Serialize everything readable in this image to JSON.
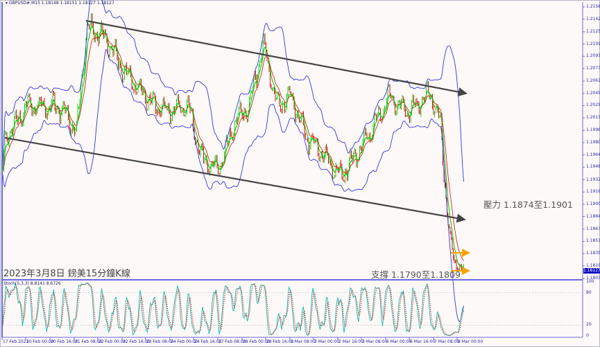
{
  "header": {
    "title": "GBPUSD#,M15  1.18148 1.18151 1.18127 1.18127",
    "dropdown_icon": "triangle-down-icon"
  },
  "annotations": {
    "caption": "2023年3月8日 鎊美15分鐘K線",
    "resistance": "壓力 1.1874至1.1901",
    "support": "支撐 1.1790至1.1809"
  },
  "colors": {
    "bull_candle": "#22cc22",
    "bear_candle": "#dd1111",
    "fast_ma": "#00cc00",
    "slow_ma": "#dd2222",
    "envelope": "#3333ee",
    "trendline": "#444444",
    "level_arrow": "#f5a300",
    "stoch_main": "#20c0b0",
    "stoch_signal": "#dd2222",
    "axis": "#6a6ae0",
    "current_price_bg": "#1010c0"
  },
  "chart_data": [
    {
      "type": "candlestick",
      "symbol": "GBPUSD#",
      "timeframe": "M15",
      "last_ohlc": {
        "open": 1.18148,
        "high": 1.18151,
        "low": 1.18127,
        "close": 1.18127
      },
      "current_price": "1.18127",
      "ylim": [
        1.1803,
        1.2158
      ],
      "price_ticks": [
        "1.21580",
        "1.21420",
        "1.21255",
        "1.21095",
        "1.20935",
        "1.20775",
        "1.20610",
        "1.20450",
        "1.20290",
        "1.20130",
        "1.19965",
        "1.19805",
        "1.19645",
        "1.19485",
        "1.19320",
        "1.19160",
        "1.19000",
        "1.18840",
        "1.18675",
        "1.18515",
        "1.18355",
        "1.18195",
        "1.18030"
      ],
      "time_ticks": [
        "17 Feb 2023",
        "20 Feb 00:00",
        "20 Feb 16:00",
        "21 Feb 08:00",
        "22 Feb 00:00",
        "22 Feb 16:00",
        "23 Feb 08:00",
        "24 Feb 00:00",
        "24 Feb 16:00",
        "27 Feb 08:00",
        "28 Feb 00:00",
        "28 Feb 16:00",
        "1 Mar 08:00",
        "2 Mar 00:00",
        "2 Mar 16:00",
        "3 Mar 08:00",
        "6 Mar 00:00",
        "6 Mar 16:00",
        "7 Mar 08:00",
        "8 Mar 00:00"
      ],
      "approx_close_path": [
        {
          "t": "17 Feb 09:00",
          "p": 1.194
        },
        {
          "t": "17 Feb 16:00",
          "p": 1.1985
        },
        {
          "t": "20 Feb 01:00",
          "p": 1.203
        },
        {
          "t": "21 Feb 00:00",
          "p": 1.2025
        },
        {
          "t": "21 Feb 09:30",
          "p": 1.1995
        },
        {
          "t": "21 Feb 16:30",
          "p": 1.213
        },
        {
          "t": "22 Feb 04:00",
          "p": 1.212
        },
        {
          "t": "22 Feb 18:00",
          "p": 1.207
        },
        {
          "t": "23 Feb 08:00",
          "p": 1.204
        },
        {
          "t": "23 Feb 22:00",
          "p": 1.202
        },
        {
          "t": "24 Feb 12:00",
          "p": 1.203
        },
        {
          "t": "24 Feb 21:00",
          "p": 1.196
        },
        {
          "t": "27 Feb 08:30",
          "p": 1.1945
        },
        {
          "t": "27 Feb 20:00",
          "p": 1.201
        },
        {
          "t": "28 Feb 05:00",
          "p": 1.203
        },
        {
          "t": "28 Feb 14:30",
          "p": 1.211
        },
        {
          "t": "28 Feb 23:30",
          "p": 1.203
        },
        {
          "t": "1 Mar 09:00",
          "p": 1.204
        },
        {
          "t": "1 Mar 18:30",
          "p": 1.199
        },
        {
          "t": "2 Mar 08:30",
          "p": 1.196
        },
        {
          "t": "2 Mar 18:00",
          "p": 1.1935
        },
        {
          "t": "3 Mar 03:00",
          "p": 1.196
        },
        {
          "t": "3 Mar 12:30",
          "p": 1.199
        },
        {
          "t": "6 Mar 02:00",
          "p": 1.204
        },
        {
          "t": "6 Mar 16:00",
          "p": 1.202
        },
        {
          "t": "7 Mar 06:00",
          "p": 1.2045
        },
        {
          "t": "7 Mar 13:00",
          "p": 1.2
        },
        {
          "t": "7 Mar 17:30",
          "p": 1.188
        },
        {
          "t": "7 Mar 22:00",
          "p": 1.1825
        },
        {
          "t": "8 Mar 05:00",
          "p": 1.18127
        }
      ],
      "trendlines": [
        {
          "from": {
            "t": "21 Feb 16:00",
            "p": 1.214
          },
          "to": {
            "t": "8 Mar 06:00",
            "p": 1.2045
          }
        },
        {
          "from": {
            "t": "17 Feb 15:00",
            "p": 1.1987
          },
          "to": {
            "t": "8 Mar 05:00",
            "p": 1.188
          }
        }
      ],
      "levels": [
        {
          "range": [
            1.1874,
            1.1901
          ]
        },
        {
          "range": [
            1.179,
            1.1809
          ]
        }
      ],
      "grid": false
    },
    {
      "type": "line",
      "label": "Stoch(5,3,3) 8.8141 8.6726",
      "main_value": 8.8141,
      "signal_value": 8.6726,
      "ylim": [
        0,
        100
      ],
      "levels": [
        20,
        80
      ],
      "y_ticks": [
        "100",
        "80",
        "20",
        "0"
      ]
    }
  ]
}
